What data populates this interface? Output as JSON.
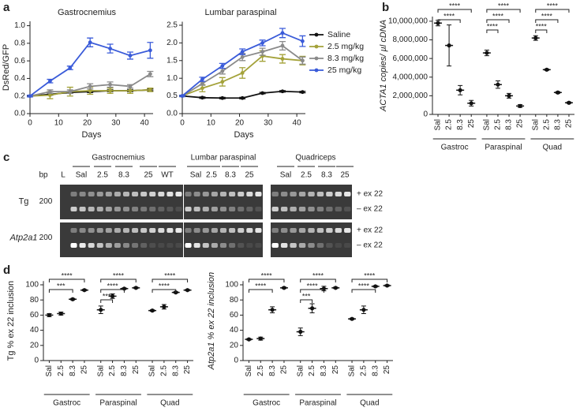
{
  "chart_data": [
    {
      "type": "line",
      "panel_label": "a",
      "title": "Gastrocnemius",
      "x_label": "Days",
      "y_label": "DsRed/GFP",
      "x": [
        0,
        7,
        14,
        21,
        28,
        35,
        42
      ],
      "xlim": [
        0,
        43
      ],
      "xticks": [
        0,
        10,
        20,
        30,
        40
      ],
      "ylim": [
        0,
        1.05
      ],
      "yticks": [
        {
          "value": 0,
          "label": "0.0"
        },
        {
          "value": 0.2,
          "label": "0.2"
        },
        {
          "value": 0.4,
          "label": "0.4"
        },
        {
          "value": 0.6,
          "label": "0.6"
        },
        {
          "value": 0.8,
          "label": "0.8"
        },
        {
          "value": 1,
          "label": "1.0"
        }
      ],
      "series": [
        {
          "color": "#111111",
          "values": [
            0.2,
            0.22,
            0.24,
            0.25,
            0.26,
            0.26,
            0.27
          ],
          "errors": [
            0.01,
            0.01,
            0.01,
            0.01,
            0.01,
            0.01,
            0.01
          ]
        },
        {
          "color": "#a4a23a",
          "values": [
            0.2,
            0.21,
            0.25,
            0.26,
            0.26,
            0.26,
            0.27
          ],
          "errors": [
            0.01,
            0.04,
            0.05,
            0.04,
            0.03,
            0.03,
            0.02
          ]
        },
        {
          "color": "#8a8a8a",
          "values": [
            0.2,
            0.25,
            0.25,
            0.31,
            0.33,
            0.31,
            0.45
          ],
          "errors": [
            0.01,
            0.02,
            0.02,
            0.03,
            0.03,
            0.02,
            0.03
          ]
        },
        {
          "color": "#3a5bd9",
          "values": [
            0.2,
            0.37,
            0.52,
            0.81,
            0.74,
            0.66,
            0.72
          ],
          "errors": [
            0.01,
            0.02,
            0.02,
            0.05,
            0.05,
            0.04,
            0.09
          ]
        }
      ]
    },
    {
      "type": "line",
      "title": "Lumbar paraspinal",
      "x_label": "Days",
      "x": [
        0,
        7,
        14,
        21,
        28,
        35,
        42
      ],
      "xlim": [
        0,
        43
      ],
      "xticks": [
        0,
        10,
        20,
        30,
        40
      ],
      "ylim": [
        0,
        2.6
      ],
      "yticks": [
        {
          "value": 0,
          "label": "0.0"
        },
        {
          "value": 0.5,
          "label": "0.5"
        },
        {
          "value": 1,
          "label": "1.0"
        },
        {
          "value": 1.5,
          "label": "1.5"
        },
        {
          "value": 2,
          "label": "2.0"
        },
        {
          "value": 2.5,
          "label": "2.5"
        }
      ],
      "legend": "outside-right",
      "series": [
        {
          "name": "Saline",
          "color": "#111111",
          "values": [
            0.5,
            0.45,
            0.44,
            0.44,
            0.58,
            0.63,
            0.61
          ],
          "errors": [
            0.01,
            0.02,
            0.02,
            0.02,
            0.02,
            0.02,
            0.02
          ]
        },
        {
          "name": "2.5 mg/kg",
          "color": "#a4a23a",
          "values": [
            0.5,
            0.72,
            0.9,
            1.15,
            1.63,
            1.55,
            1.5
          ],
          "errors": [
            0.02,
            0.1,
            0.12,
            0.15,
            0.15,
            0.12,
            0.12
          ]
        },
        {
          "name": "8.3 mg/kg",
          "color": "#8a8a8a",
          "values": [
            0.5,
            0.85,
            1.2,
            1.6,
            1.75,
            1.92,
            1.5
          ],
          "errors": [
            0.02,
            0.05,
            0.08,
            0.1,
            0.1,
            0.12,
            0.1
          ]
        },
        {
          "name": "25 mg/kg",
          "color": "#3a5bd9",
          "values": [
            0.5,
            0.97,
            1.35,
            1.75,
            2.0,
            2.28,
            2.05
          ],
          "errors": [
            0.02,
            0.06,
            0.07,
            0.08,
            0.08,
            0.13,
            0.15
          ]
        }
      ]
    },
    {
      "type": "dot",
      "panel_label": "b",
      "y_label": "ACTA1 copies/ µl cDNA",
      "color": "#111111",
      "categories": [
        "Sal",
        "2.5",
        "8.3",
        "25",
        "Sal",
        "2.5",
        "8.3",
        "25",
        "Sal",
        "2.5",
        "8.3",
        "25"
      ],
      "groups": [
        "Gastroc",
        "Paraspinal",
        "Quad"
      ],
      "values": [
        9800000,
        7400000,
        2600000,
        1200000,
        6600000,
        3200000,
        2000000,
        900000,
        8200000,
        4800000,
        2350000,
        1250000
      ],
      "errors": [
        300000,
        2200000,
        500000,
        300000,
        300000,
        400000,
        250000,
        150000,
        250000,
        80000,
        100000,
        80000
      ],
      "ylim": [
        0,
        10500000
      ],
      "yticks": [
        0,
        {
          "value": 2000000,
          "label": "2,000,000"
        },
        {
          "value": 4000000,
          "label": "4,000,000"
        },
        {
          "value": 6000000,
          "label": "6,000,000"
        },
        {
          "value": 8000000,
          "label": "8,000,000"
        },
        {
          "value": 10000000,
          "label": "10,000,000"
        }
      ],
      "comparisons": [
        {
          "from": 0,
          "to": 3,
          "label": "****"
        },
        {
          "from": 0,
          "to": 2,
          "label": "****"
        },
        {
          "from": 4,
          "to": 7,
          "label": "****"
        },
        {
          "from": 4,
          "to": 6,
          "label": "****"
        },
        {
          "from": 4,
          "to": 5,
          "label": "****"
        },
        {
          "from": 8,
          "to": 11,
          "label": "****"
        },
        {
          "from": 8,
          "to": 10,
          "label": "****"
        },
        {
          "from": 8,
          "to": 9,
          "label": "****"
        }
      ]
    },
    {
      "type": "dot",
      "panel_label": "d",
      "y_label": "Tg % ex 22 inclusion",
      "color": "#111111",
      "categories": [
        "Sal",
        "2.5",
        "8.3",
        "25",
        "Sal",
        "2.5",
        "8.3",
        "25",
        "Sal",
        "2.5",
        "8.3",
        "25"
      ],
      "groups": [
        "Gastroc",
        "Paraspinal",
        "Quad"
      ],
      "values": [
        60,
        62,
        81,
        93,
        67,
        85,
        95,
        96,
        66,
        71,
        90,
        93
      ],
      "errors": [
        2,
        2,
        1,
        1,
        5,
        3,
        1,
        1,
        1,
        3,
        1,
        1
      ],
      "ylim": [
        0,
        105
      ],
      "yticks": [
        0,
        20,
        40,
        60,
        80,
        100
      ],
      "comparisons": [
        {
          "from": 0,
          "to": 3,
          "label": "****"
        },
        {
          "from": 0,
          "to": 2,
          "label": "***"
        },
        {
          "from": 4,
          "to": 7,
          "label": "****"
        },
        {
          "from": 4,
          "to": 6,
          "label": "****"
        },
        {
          "from": 4,
          "to": 5,
          "label": "***"
        },
        {
          "from": 8,
          "to": 11,
          "label": "****"
        },
        {
          "from": 8,
          "to": 10,
          "label": "****"
        }
      ]
    },
    {
      "type": "dot",
      "y_label": "Atp2a1 % ex 22 inclusion",
      "color": "#111111",
      "categories": [
        "Sal",
        "2.5",
        "8.3",
        "25",
        "Sal",
        "2.5",
        "8.3",
        "25",
        "Sal",
        "2.5",
        "8.3",
        "25"
      ],
      "groups": [
        "Gastroc",
        "Paraspinal",
        "Quad"
      ],
      "values": [
        28,
        29,
        67,
        96,
        38,
        69,
        95,
        96,
        55,
        67,
        98,
        99
      ],
      "errors": [
        1,
        2,
        4,
        1,
        5,
        6,
        3,
        1,
        1,
        5,
        1,
        1
      ],
      "ylim": [
        0,
        105
      ],
      "yticks": [
        0,
        20,
        40,
        60,
        80,
        100
      ],
      "comparisons": [
        {
          "from": 0,
          "to": 3,
          "label": "****"
        },
        {
          "from": 0,
          "to": 2,
          "label": "****"
        },
        {
          "from": 4,
          "to": 7,
          "label": "****"
        },
        {
          "from": 4,
          "to": 6,
          "label": "****"
        },
        {
          "from": 4,
          "to": 5,
          "label": "***"
        },
        {
          "from": 8,
          "to": 11,
          "label": "****"
        },
        {
          "from": 8,
          "to": 10,
          "label": "****"
        }
      ]
    }
  ],
  "gel_panel": {
    "panel_label": "c",
    "bp_label": "bp",
    "ladder_label": "L",
    "groups": [
      {
        "label": "Gastrocnemius",
        "lanes": [
          "Sal",
          "2.5",
          "8.3",
          "25",
          "WT"
        ]
      },
      {
        "label": "Lumbar paraspinal",
        "lanes": [
          "Sal",
          "2.5",
          "8.3",
          "25"
        ]
      },
      {
        "label": "Quadriceps",
        "lanes": [
          "Sal",
          "2.5",
          "8.3",
          "25"
        ]
      }
    ],
    "rows": [
      {
        "label": "Tg",
        "size": "200",
        "bands": [
          "+ ex 22",
          "– ex 22"
        ]
      },
      {
        "label": "Atp2a1",
        "size": "200",
        "bands": [
          "+ ex 22",
          "– ex 22"
        ]
      }
    ]
  }
}
